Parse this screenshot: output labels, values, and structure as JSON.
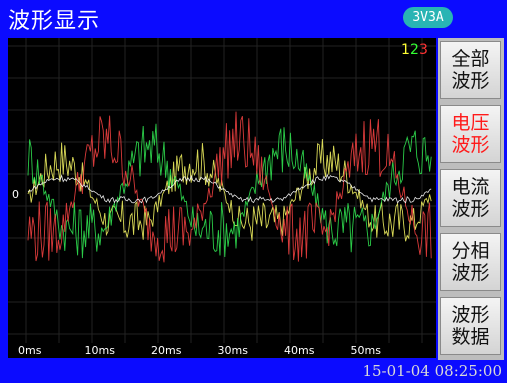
{
  "window": {
    "title": "波形显示",
    "mode_badge": "3V3A"
  },
  "legend": {
    "items": [
      {
        "label": "1",
        "color": "#ffff33"
      },
      {
        "label": "2",
        "color": "#33ff33"
      },
      {
        "label": "3",
        "color": "#ff3333"
      }
    ]
  },
  "sidebar": {
    "buttons": [
      {
        "label": "全部\n波形",
        "active": false
      },
      {
        "label": "电压\n波形",
        "active": true
      },
      {
        "label": "电流\n波形",
        "active": false
      },
      {
        "label": "分相\n波形",
        "active": false
      },
      {
        "label": "波形\n数据",
        "active": false
      }
    ]
  },
  "status": {
    "datetime": "15-01-04 08:25:00"
  },
  "chart_data": {
    "type": "line",
    "xlabel": "",
    "ylabel": "",
    "x_ticks": [
      "0ms",
      "10ms",
      "20ms",
      "30ms",
      "40ms",
      "50ms"
    ],
    "y_zero_label": "0",
    "grid": true,
    "legend_position": "top-right",
    "cycle_ms": 20,
    "series": [
      {
        "color": "#ffff66",
        "phase_deg": 0
      },
      {
        "color": "#33ee55",
        "phase_deg": 120
      },
      {
        "color": "#ff4444",
        "phase_deg": 240
      },
      {
        "color": "#ffffff",
        "phase_deg": 0
      }
    ]
  }
}
